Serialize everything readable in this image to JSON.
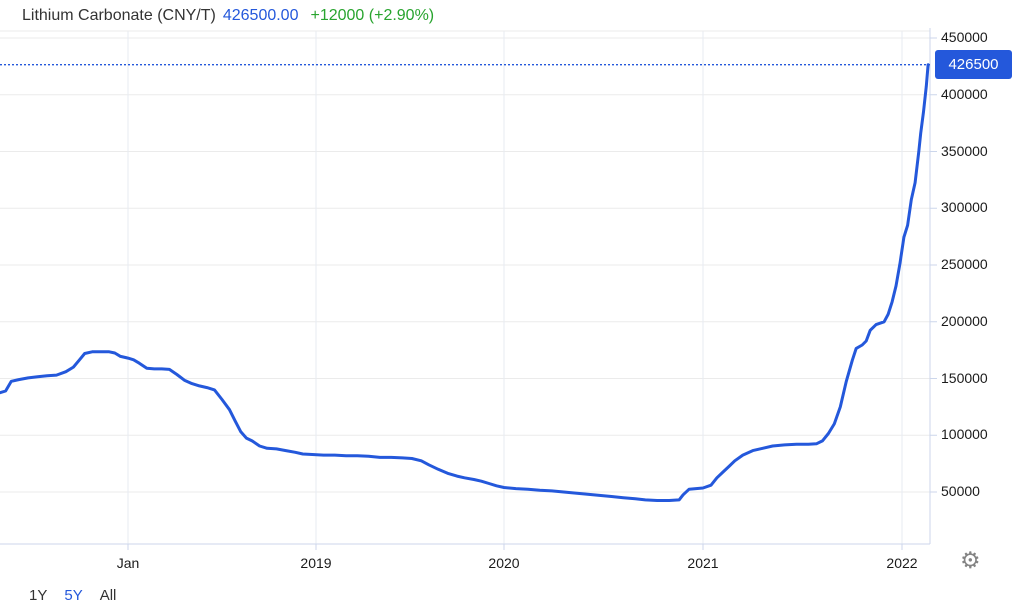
{
  "header": {
    "title": "Lithium Carbonate (CNY/T)",
    "price": "426500.00",
    "change": "+12000 (+2.90%)"
  },
  "axis_badge": {
    "label": "426500"
  },
  "range_selector": {
    "items": [
      {
        "label": "1Y",
        "active": false
      },
      {
        "label": "5Y",
        "active": true
      },
      {
        "label": "All",
        "active": false
      }
    ]
  },
  "icons": {
    "gear": "⚙"
  },
  "colors": {
    "line": "#2458db",
    "badge_bg": "#2458db",
    "price_text": "#2d61d9",
    "change_text": "#28a42e",
    "grid_h": "#ebebeb",
    "grid_v": "#e7ebf2",
    "axis": "#ccd6eb",
    "label": "#1b1b1b"
  },
  "chart_data": {
    "type": "line",
    "title": "Lithium Carbonate (CNY/T)",
    "unit": "CNY/T",
    "current_value": 426500,
    "change_abs": 12000,
    "change_pct": 2.9,
    "grid": true,
    "legend": "none",
    "ylim": [
      8000,
      457000
    ],
    "xlim_decimal_years": [
      2017.32,
      2022.15
    ],
    "y_ticks": [
      450000,
      400000,
      350000,
      300000,
      250000,
      200000,
      150000,
      100000,
      50000
    ],
    "x_ticks": [
      {
        "label": "Jan",
        "year": 2018
      },
      {
        "label": "2019",
        "year": 2019
      },
      {
        "label": "2020",
        "year": 2020
      },
      {
        "label": "2021",
        "year": 2021
      },
      {
        "label": "2022",
        "year": 2022
      }
    ],
    "series": [
      {
        "name": "Lithium Carbonate (CNY/T)",
        "points": [
          [
            2017.32,
            137500
          ],
          [
            2017.35,
            139000
          ],
          [
            2017.38,
            147500
          ],
          [
            2017.42,
            149000
          ],
          [
            2017.47,
            150500
          ],
          [
            2017.52,
            151500
          ],
          [
            2017.57,
            152500
          ],
          [
            2017.62,
            153000
          ],
          [
            2017.67,
            156000
          ],
          [
            2017.71,
            160000
          ],
          [
            2017.74,
            166000
          ],
          [
            2017.77,
            172000
          ],
          [
            2017.81,
            173500
          ],
          [
            2017.86,
            173500
          ],
          [
            2017.9,
            173500
          ],
          [
            2017.93,
            172500
          ],
          [
            2017.96,
            169500
          ],
          [
            2018.0,
            168000
          ],
          [
            2018.03,
            166500
          ],
          [
            2018.06,
            163500
          ],
          [
            2018.1,
            159000
          ],
          [
            2018.14,
            158500
          ],
          [
            2018.18,
            158500
          ],
          [
            2018.22,
            158000
          ],
          [
            2018.26,
            153500
          ],
          [
            2018.3,
            148500
          ],
          [
            2018.34,
            145500
          ],
          [
            2018.38,
            143500
          ],
          [
            2018.42,
            142000
          ],
          [
            2018.46,
            140000
          ],
          [
            2018.5,
            131500
          ],
          [
            2018.54,
            122500
          ],
          [
            2018.57,
            112500
          ],
          [
            2018.6,
            103000
          ],
          [
            2018.63,
            97500
          ],
          [
            2018.66,
            95000
          ],
          [
            2018.7,
            90500
          ],
          [
            2018.74,
            88500
          ],
          [
            2018.79,
            88000
          ],
          [
            2018.84,
            86500
          ],
          [
            2018.89,
            85000
          ],
          [
            2018.93,
            83500
          ],
          [
            2018.98,
            83000
          ],
          [
            2019.04,
            82500
          ],
          [
            2019.1,
            82500
          ],
          [
            2019.16,
            82000
          ],
          [
            2019.22,
            82000
          ],
          [
            2019.28,
            81500
          ],
          [
            2019.34,
            80500
          ],
          [
            2019.4,
            80500
          ],
          [
            2019.46,
            80000
          ],
          [
            2019.51,
            79500
          ],
          [
            2019.56,
            77500
          ],
          [
            2019.6,
            74000
          ],
          [
            2019.65,
            70000
          ],
          [
            2019.7,
            66500
          ],
          [
            2019.75,
            64000
          ],
          [
            2019.79,
            62500
          ],
          [
            2019.84,
            61000
          ],
          [
            2019.88,
            59500
          ],
          [
            2019.92,
            57500
          ],
          [
            2019.96,
            55500
          ],
          [
            2020.0,
            54000
          ],
          [
            2020.06,
            53000
          ],
          [
            2020.12,
            52500
          ],
          [
            2020.18,
            51500
          ],
          [
            2020.24,
            51000
          ],
          [
            2020.3,
            50000
          ],
          [
            2020.36,
            49000
          ],
          [
            2020.42,
            48000
          ],
          [
            2020.48,
            47000
          ],
          [
            2020.54,
            46000
          ],
          [
            2020.6,
            45000
          ],
          [
            2020.66,
            44000
          ],
          [
            2020.71,
            43000
          ],
          [
            2020.77,
            42500
          ],
          [
            2020.83,
            42500
          ],
          [
            2020.88,
            43000
          ],
          [
            2020.9,
            47500
          ],
          [
            2020.93,
            52500
          ],
          [
            2021.0,
            53500
          ],
          [
            2021.04,
            56000
          ],
          [
            2021.07,
            62500
          ],
          [
            2021.1,
            67500
          ],
          [
            2021.13,
            72500
          ],
          [
            2021.16,
            77500
          ],
          [
            2021.2,
            82500
          ],
          [
            2021.25,
            86500
          ],
          [
            2021.3,
            88500
          ],
          [
            2021.35,
            90500
          ],
          [
            2021.41,
            91500
          ],
          [
            2021.47,
            92000
          ],
          [
            2021.53,
            92000
          ],
          [
            2021.57,
            92500
          ],
          [
            2021.6,
            95000
          ],
          [
            2021.63,
            101500
          ],
          [
            2021.66,
            110000
          ],
          [
            2021.69,
            125000
          ],
          [
            2021.72,
            147500
          ],
          [
            2021.75,
            166000
          ],
          [
            2021.77,
            176500
          ],
          [
            2021.8,
            179500
          ],
          [
            2021.82,
            183000
          ],
          [
            2021.84,
            192500
          ],
          [
            2021.87,
            197500
          ],
          [
            2021.91,
            200000
          ],
          [
            2021.93,
            206500
          ],
          [
            2021.95,
            217500
          ],
          [
            2021.97,
            231500
          ],
          [
            2021.99,
            251500
          ],
          [
            2022.01,
            274500
          ],
          [
            2022.03,
            285000
          ],
          [
            2022.05,
            307500
          ],
          [
            2022.07,
            322500
          ],
          [
            2022.09,
            350000
          ],
          [
            2022.1,
            366000
          ],
          [
            2022.115,
            385000
          ],
          [
            2022.13,
            407500
          ],
          [
            2022.14,
            426500
          ]
        ]
      }
    ]
  }
}
